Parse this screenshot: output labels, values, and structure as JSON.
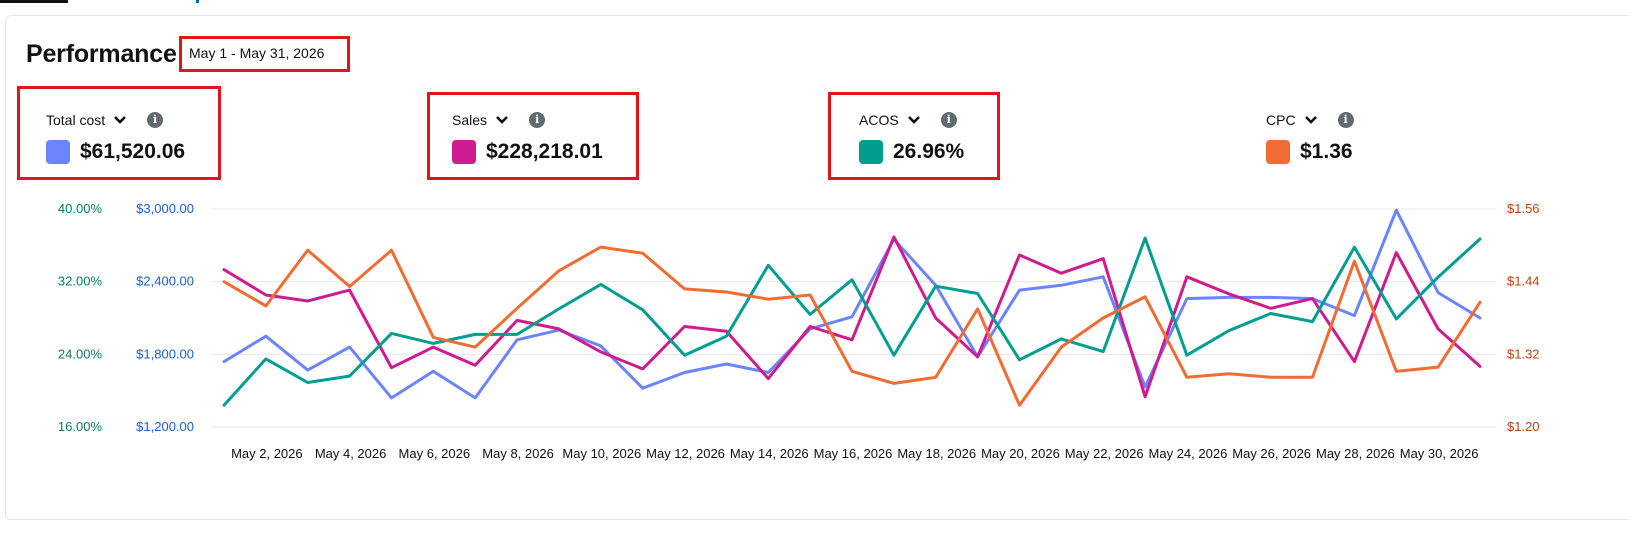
{
  "header": {
    "title": "Performance",
    "date_range": "May 1 - May 31, 2026"
  },
  "metrics": [
    {
      "label": "Total cost",
      "value": "$61,520.06",
      "color": "#6b84ff"
    },
    {
      "label": "Sales",
      "value": "$228,218.01",
      "color": "#d01a90"
    },
    {
      "label": "ACOS",
      "value": "26.96%",
      "color": "#009e8f"
    },
    {
      "label": "CPC",
      "value": "$1.36",
      "color": "#f26b32"
    }
  ],
  "chart_data": {
    "type": "line",
    "x": [
      "May 1, 2026",
      "May 2, 2026",
      "May 3, 2026",
      "May 4, 2026",
      "May 5, 2026",
      "May 6, 2026",
      "May 7, 2026",
      "May 8, 2026",
      "May 9, 2026",
      "May 10, 2026",
      "May 11, 2026",
      "May 12, 2026",
      "May 13, 2026",
      "May 14, 2026",
      "May 15, 2026",
      "May 16, 2026",
      "May 17, 2026",
      "May 18, 2026",
      "May 19, 2026",
      "May 20, 2026",
      "May 21, 2026",
      "May 22, 2026",
      "May 23, 2026",
      "May 24, 2026",
      "May 25, 2026",
      "May 26, 2026",
      "May 27, 2026",
      "May 28, 2026",
      "May 29, 2026",
      "May 30, 2026",
      "May 31, 2026"
    ],
    "x_tick_labels": [
      "May 2, 2026",
      "May 4, 2026",
      "May 6, 2026",
      "May 8, 2026",
      "May 10, 2026",
      "May 12, 2026",
      "May 14, 2026",
      "May 16, 2026",
      "May 18, 2026",
      "May 20, 2026",
      "May 22, 2026",
      "May 24, 2026",
      "May 26, 2026",
      "May 28, 2026",
      "May 30, 2026"
    ],
    "axes": {
      "left_acos": {
        "ylim": [
          16,
          40
        ],
        "ticks": [
          "16.00%",
          "24.00%",
          "32.00%",
          "40.00%"
        ],
        "color": "#067d62"
      },
      "left_cost": {
        "ylim": [
          1200,
          3000
        ],
        "ticks": [
          "$1,200.00",
          "$1,800.00",
          "$2,400.00",
          "$3,000.00"
        ],
        "color": "#1a5fd8"
      },
      "right_cpc": {
        "ylim": [
          1.2,
          1.56
        ],
        "ticks": [
          "$1.20",
          "$1.32",
          "$1.44",
          "$1.56"
        ],
        "color": "#c7400f"
      }
    },
    "grid": true,
    "series": [
      {
        "name": "Total cost",
        "axis": "left_cost",
        "color": "#6b84ff",
        "values": [
          1740,
          1950,
          1670,
          1860,
          1440,
          1660,
          1440,
          1920,
          2000,
          1870,
          1520,
          1650,
          1720,
          1650,
          2010,
          2110,
          2750,
          2370,
          1780,
          2330,
          2370,
          2440,
          1530,
          2260,
          2270,
          2270,
          2260,
          2120,
          2990,
          2310,
          2100
        ]
      },
      {
        "name": "Sales",
        "axis": "left_cost",
        "color": "#d01a90",
        "values": [
          2500,
          2290,
          2240,
          2330,
          1690,
          1860,
          1710,
          2080,
          2010,
          1820,
          1680,
          2030,
          1990,
          1600,
          2030,
          1920,
          2770,
          2100,
          1780,
          2620,
          2470,
          2590,
          1450,
          2440,
          2300,
          2180,
          2260,
          1740,
          2640,
          2010,
          1700
        ]
      },
      {
        "name": "ACOS",
        "axis": "left_acos",
        "color": "#009e8f",
        "values": [
          18.4,
          23.5,
          20.9,
          21.6,
          26.3,
          25.2,
          26.2,
          26.2,
          29.0,
          31.7,
          28.9,
          23.9,
          26.0,
          33.8,
          28.4,
          32.2,
          23.9,
          31.5,
          30.7,
          23.4,
          25.7,
          24.3,
          36.8,
          23.9,
          26.6,
          28.5,
          27.6,
          35.8,
          27.9,
          32.5,
          36.7
        ]
      },
      {
        "name": "CPC",
        "axis": "right_cpc",
        "color": "#f26b32",
        "values": [
          1.44,
          1.4,
          1.492,
          1.432,
          1.492,
          1.348,
          1.332,
          1.396,
          1.458,
          1.497,
          1.487,
          1.428,
          1.423,
          1.411,
          1.418,
          1.292,
          1.272,
          1.282,
          1.395,
          1.236,
          1.332,
          1.38,
          1.415,
          1.282,
          1.288,
          1.282,
          1.282,
          1.474,
          1.292,
          1.299,
          1.406
        ]
      }
    ]
  }
}
